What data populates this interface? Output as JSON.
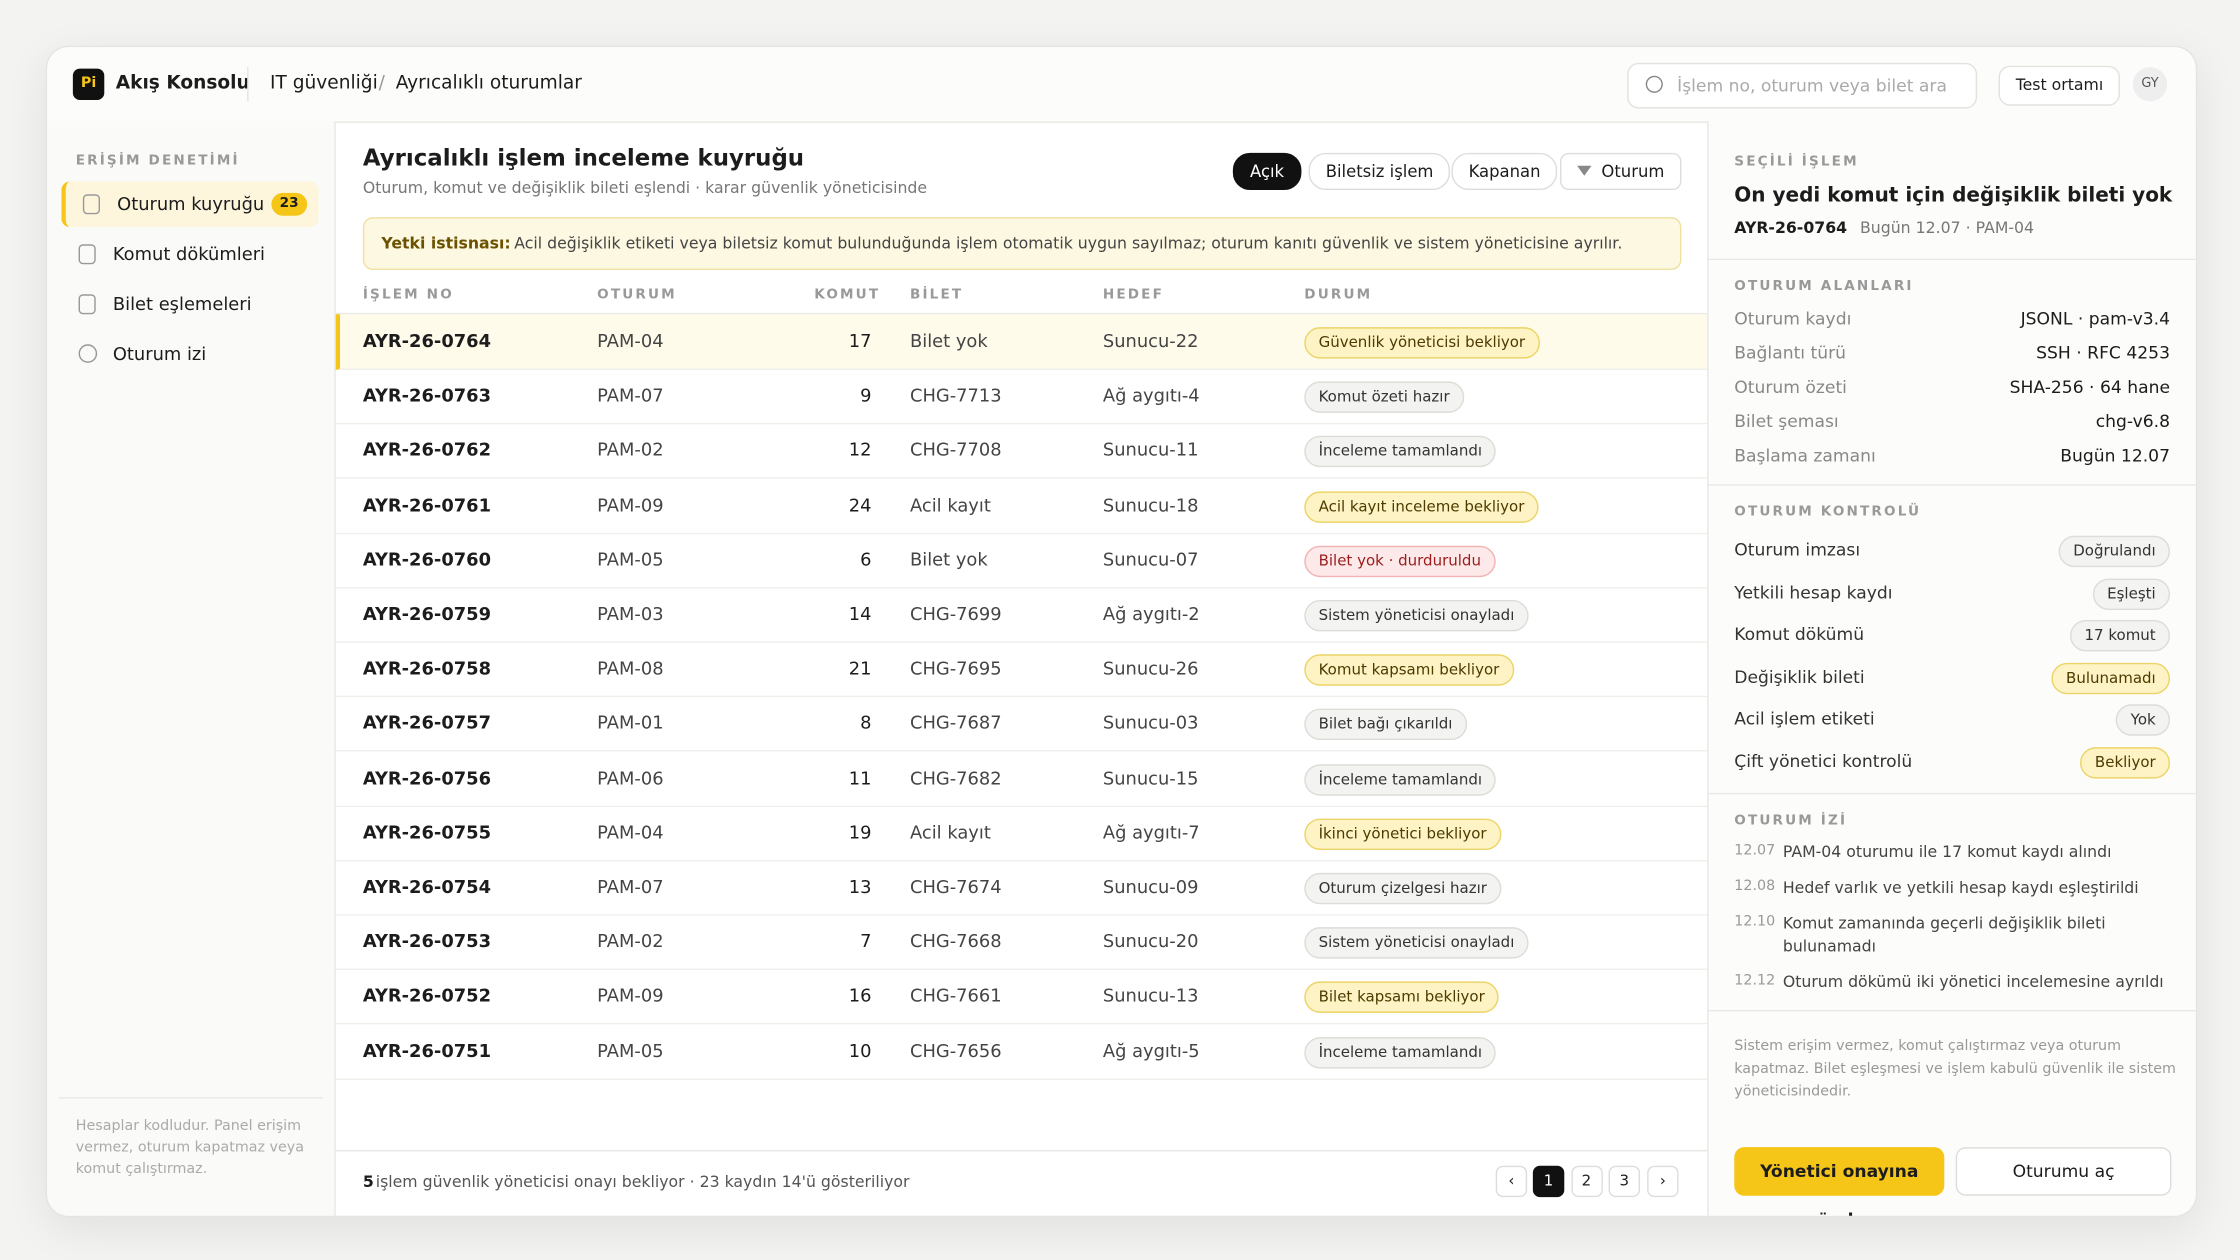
{
  "header": {
    "logo": "Pi",
    "app": "Akış Konsolu",
    "breadcrumb": [
      "IT güvenliği",
      "Ayrıcalıklı oturumlar"
    ],
    "breadcrumb_separator": "/",
    "search_placeholder": "İşlem no, oturum veya bilet ara",
    "environment": "Test ortamı",
    "avatar": "GY"
  },
  "sidebar": {
    "section": "ERİŞİM DENETİMİ",
    "items": [
      {
        "label": "Oturum kuyruğu",
        "badge": "23"
      },
      {
        "label": "Komut dökümleri"
      },
      {
        "label": "Bilet eşlemeleri"
      },
      {
        "label": "Oturum izi"
      }
    ],
    "note": "Hesaplar kodludur. Panel erişim vermez, oturum kapatmaz veya komut çalıştırmaz."
  },
  "main": {
    "title": "Ayrıcalıklı işlem inceleme kuyruğu",
    "subtitle": "Oturum, komut ve değişiklik bileti eşlendi · karar güvenlik yöneticisinde",
    "filters": [
      "Açık",
      "Biletsiz işlem",
      "Kapanan",
      "Oturum"
    ],
    "alert": {
      "label": "Yetki istisnası:",
      "text": "Acil değişiklik etiketi veya biletsiz komut bulunduğunda işlem otomatik uygun sayılmaz; oturum kanıtı güvenlik ve sistem yöneticisine ayrılır."
    },
    "table": {
      "columns": [
        "İŞLEM NO",
        "OTURUM",
        "KOMUT",
        "BİLET",
        "HEDEF",
        "DURUM"
      ],
      "rows": [
        [
          "AYR-26-0764",
          "PAM-04",
          17,
          "Bilet yok",
          "Sunucu-22",
          {
            "text": "Güvenlik yöneticisi bekliyor",
            "tone": "warn"
          }
        ],
        [
          "AYR-26-0763",
          "PAM-07",
          9,
          "CHG-7713",
          "Ağ aygıtı-4",
          {
            "text": "Komut özeti hazır",
            "tone": "neutral"
          }
        ],
        [
          "AYR-26-0762",
          "PAM-02",
          12,
          "CHG-7708",
          "Sunucu-11",
          {
            "text": "İnceleme tamamlandı",
            "tone": "neutral"
          }
        ],
        [
          "AYR-26-0761",
          "PAM-09",
          24,
          "Acil kayıt",
          "Sunucu-18",
          {
            "text": "Acil kayıt inceleme bekliyor",
            "tone": "warn"
          }
        ],
        [
          "AYR-26-0760",
          "PAM-05",
          6,
          "Bilet yok",
          "Sunucu-07",
          {
            "text": "Bilet yok · durduruldu",
            "tone": "danger"
          }
        ],
        [
          "AYR-26-0759",
          "PAM-03",
          14,
          "CHG-7699",
          "Ağ aygıtı-2",
          {
            "text": "Sistem yöneticisi onayladı",
            "tone": "neutral"
          }
        ],
        [
          "AYR-26-0758",
          "PAM-08",
          21,
          "CHG-7695",
          "Sunucu-26",
          {
            "text": "Komut kapsamı bekliyor",
            "tone": "warn"
          }
        ],
        [
          "AYR-26-0757",
          "PAM-01",
          8,
          "CHG-7687",
          "Sunucu-03",
          {
            "text": "Bilet bağı çıkarıldı",
            "tone": "neutral"
          }
        ],
        [
          "AYR-26-0756",
          "PAM-06",
          11,
          "CHG-7682",
          "Sunucu-15",
          {
            "text": "İnceleme tamamlandı",
            "tone": "neutral"
          }
        ],
        [
          "AYR-26-0755",
          "PAM-04",
          19,
          "Acil kayıt",
          "Ağ aygıtı-7",
          {
            "text": "İkinci yönetici bekliyor",
            "tone": "warn"
          }
        ],
        [
          "AYR-26-0754",
          "PAM-07",
          13,
          "CHG-7674",
          "Sunucu-09",
          {
            "text": "Oturum çizelgesi hazır",
            "tone": "neutral"
          }
        ],
        [
          "AYR-26-0753",
          "PAM-02",
          7,
          "CHG-7668",
          "Sunucu-20",
          {
            "text": "Sistem yöneticisi onayladı",
            "tone": "neutral"
          }
        ],
        [
          "AYR-26-0752",
          "PAM-09",
          16,
          "CHG-7661",
          "Sunucu-13",
          {
            "text": "Bilet kapsamı bekliyor",
            "tone": "warn"
          }
        ],
        [
          "AYR-26-0751",
          "PAM-05",
          10,
          "CHG-7656",
          "Ağ aygıtı-5",
          {
            "text": "İnceleme tamamlandı",
            "tone": "neutral"
          }
        ]
      ]
    },
    "footer": {
      "count": "5",
      "text": "işlem güvenlik yöneticisi onayı bekliyor · 23 kaydın 14'ü gösteriliyor",
      "prev": "‹",
      "pages": [
        "1",
        "2",
        "3"
      ],
      "next": "›"
    }
  },
  "detail": {
    "label": "SEÇİLİ İŞLEM",
    "title": "On yedi komut için değişiklik bileti yok",
    "id": "AYR-26-0764",
    "meta": "Bugün 12.07 · PAM-04",
    "fields_title": "OTURUM ALANLARI",
    "fields": [
      [
        "Oturum kaydı",
        "JSONL · pam-v3.4"
      ],
      [
        "Bağlantı türü",
        "SSH · RFC 4253"
      ],
      [
        "Oturum özeti",
        "SHA-256 · 64 hane"
      ],
      [
        "Bilet şeması",
        "chg-v6.8"
      ],
      [
        "Başlama zamanı",
        "Bugün 12.07"
      ]
    ],
    "controls_title": "OTURUM KONTROLÜ",
    "controls": [
      {
        "label": "Oturum imzası",
        "value": "Doğrulandı",
        "tone": "neutral"
      },
      {
        "label": "Yetkili hesap kaydı",
        "value": "Eşleşti",
        "tone": "neutral"
      },
      {
        "label": "Komut dökümü",
        "value": "17 komut",
        "tone": "neutral"
      },
      {
        "label": "Değişiklik bileti",
        "value": "Bulunamadı",
        "tone": "warn"
      },
      {
        "label": "Acil işlem etiketi",
        "value": "Yok",
        "tone": "neutral"
      },
      {
        "label": "Çift yönetici kontrolü",
        "value": "Bekliyor",
        "tone": "warn"
      }
    ],
    "trail_title": "OTURUM İZİ",
    "trail": [
      [
        "12.07",
        "PAM-04 oturumu ile 17 komut kaydı alındı"
      ],
      [
        "12.08",
        "Hedef varlık ve yetkili hesap kaydı eşleştirildi"
      ],
      [
        "12.10",
        "Komut zamanında geçerli değişiklik bileti bulunamadı"
      ],
      [
        "12.12",
        "Oturum dökümü iki yönetici incelemesine ayrıldı"
      ]
    ],
    "note": "Sistem erişim vermez, komut çalıştırmaz veya oturum kapatmaz. Bilet eşleşmesi ve işlem kabulü güvenlik ile sistem yöneticisindedir.",
    "primary": "Yönetici onayına gönder",
    "secondary": "Oturumu aç"
  }
}
